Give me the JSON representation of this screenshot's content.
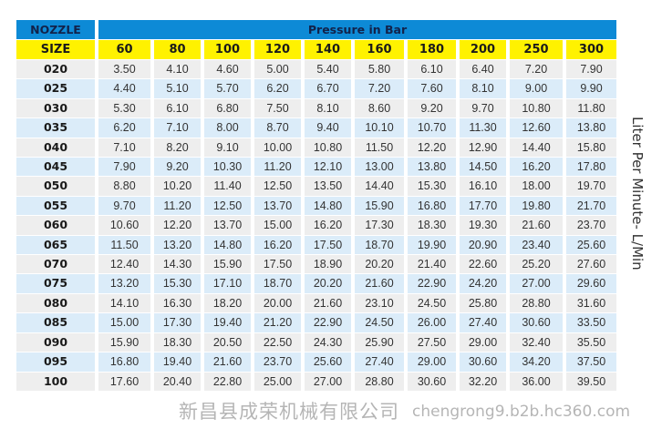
{
  "header": {
    "nozzle": "NOZZLE",
    "pressure_title": "Pressure in Bar",
    "size": "SIZE",
    "pressures": [
      "60",
      "80",
      "100",
      "120",
      "140",
      "160",
      "180",
      "200",
      "250",
      "300"
    ]
  },
  "unit_label": "Liter Per Minute- L/Min",
  "rows": [
    {
      "size": "020",
      "values": [
        "3.50",
        "4.10",
        "4.60",
        "5.00",
        "5.40",
        "5.80",
        "6.10",
        "6.40",
        "7.20",
        "7.90"
      ]
    },
    {
      "size": "025",
      "values": [
        "4.40",
        "5.10",
        "5.70",
        "6.20",
        "6.70",
        "7.20",
        "7.60",
        "8.10",
        "9.00",
        "9.90"
      ]
    },
    {
      "size": "030",
      "values": [
        "5.30",
        "6.10",
        "6.80",
        "7.50",
        "8.10",
        "8.60",
        "9.20",
        "9.70",
        "10.80",
        "11.80"
      ]
    },
    {
      "size": "035",
      "values": [
        "6.20",
        "7.10",
        "8.00",
        "8.70",
        "9.40",
        "10.10",
        "10.70",
        "11.30",
        "12.60",
        "13.80"
      ]
    },
    {
      "size": "040",
      "values": [
        "7.10",
        "8.20",
        "9.10",
        "10.00",
        "10.80",
        "11.50",
        "12.20",
        "12.90",
        "14.40",
        "15.80"
      ]
    },
    {
      "size": "045",
      "values": [
        "7.90",
        "9.20",
        "10.30",
        "11.20",
        "12.10",
        "13.00",
        "13.80",
        "14.50",
        "16.20",
        "17.80"
      ]
    },
    {
      "size": "050",
      "values": [
        "8.80",
        "10.20",
        "11.40",
        "12.50",
        "13.50",
        "14.40",
        "15.30",
        "16.10",
        "18.00",
        "19.70"
      ]
    },
    {
      "size": "055",
      "values": [
        "9.70",
        "11.20",
        "12.50",
        "13.70",
        "14.80",
        "15.90",
        "16.80",
        "17.70",
        "19.80",
        "21.70"
      ]
    },
    {
      "size": "060",
      "values": [
        "10.60",
        "12.20",
        "13.70",
        "15.00",
        "16.20",
        "17.30",
        "18.30",
        "19.30",
        "21.60",
        "23.70"
      ]
    },
    {
      "size": "065",
      "values": [
        "11.50",
        "13.20",
        "14.80",
        "16.20",
        "17.50",
        "18.70",
        "19.90",
        "20.90",
        "23.40",
        "25.60"
      ]
    },
    {
      "size": "070",
      "values": [
        "12.40",
        "14.30",
        "15.90",
        "17.50",
        "18.90",
        "20.20",
        "21.40",
        "22.60",
        "25.20",
        "27.60"
      ]
    },
    {
      "size": "075",
      "values": [
        "13.20",
        "15.30",
        "17.10",
        "18.70",
        "20.20",
        "21.60",
        "22.90",
        "24.20",
        "27.00",
        "29.60"
      ]
    },
    {
      "size": "080",
      "values": [
        "14.10",
        "16.30",
        "18.20",
        "20.00",
        "21.60",
        "23.10",
        "24.50",
        "25.80",
        "28.80",
        "31.60"
      ]
    },
    {
      "size": "085",
      "values": [
        "15.00",
        "17.30",
        "19.40",
        "21.20",
        "22.90",
        "24.50",
        "26.00",
        "27.40",
        "30.60",
        "33.50"
      ]
    },
    {
      "size": "090",
      "values": [
        "15.90",
        "18.30",
        "20.50",
        "22.50",
        "24.30",
        "25.90",
        "27.50",
        "29.00",
        "32.40",
        "35.50"
      ]
    },
    {
      "size": "095",
      "values": [
        "16.80",
        "19.40",
        "21.60",
        "23.70",
        "25.60",
        "27.40",
        "29.00",
        "30.60",
        "34.20",
        "37.50"
      ]
    },
    {
      "size": "100",
      "values": [
        "17.60",
        "20.40",
        "22.80",
        "25.00",
        "27.00",
        "28.80",
        "30.60",
        "32.20",
        "36.00",
        "39.50"
      ]
    }
  ],
  "watermark": {
    "company": "新昌县成荣机械有限公司",
    "url": "chengrong9.b2b.hc360.com"
  },
  "colors": {
    "header_blue": "#0d8ad6",
    "header_yellow": "#fff200",
    "row_grey": "#eeeeee",
    "row_blue": "#dbecf9"
  }
}
